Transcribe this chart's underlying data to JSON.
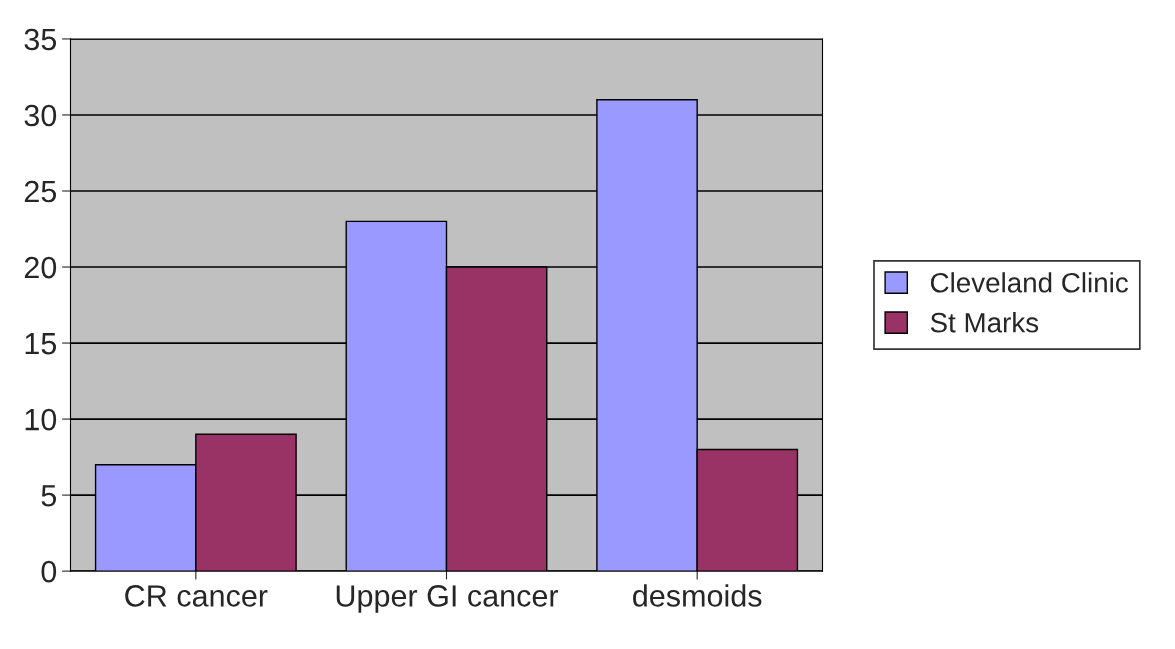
{
  "chart_data": {
    "type": "bar",
    "categories": [
      "CR cancer",
      "Upper GI cancer",
      "desmoids"
    ],
    "series": [
      {
        "name": "Cleveland Clinic",
        "color": "#9999ff",
        "values": [
          7,
          23,
          31
        ]
      },
      {
        "name": "St Marks",
        "color": "#993366",
        "values": [
          9,
          20,
          8
        ]
      }
    ],
    "ylim": [
      0,
      35
    ],
    "yticks": [
      0,
      5,
      10,
      15,
      20,
      25,
      30,
      35
    ],
    "grid": "y",
    "legend": "right"
  }
}
